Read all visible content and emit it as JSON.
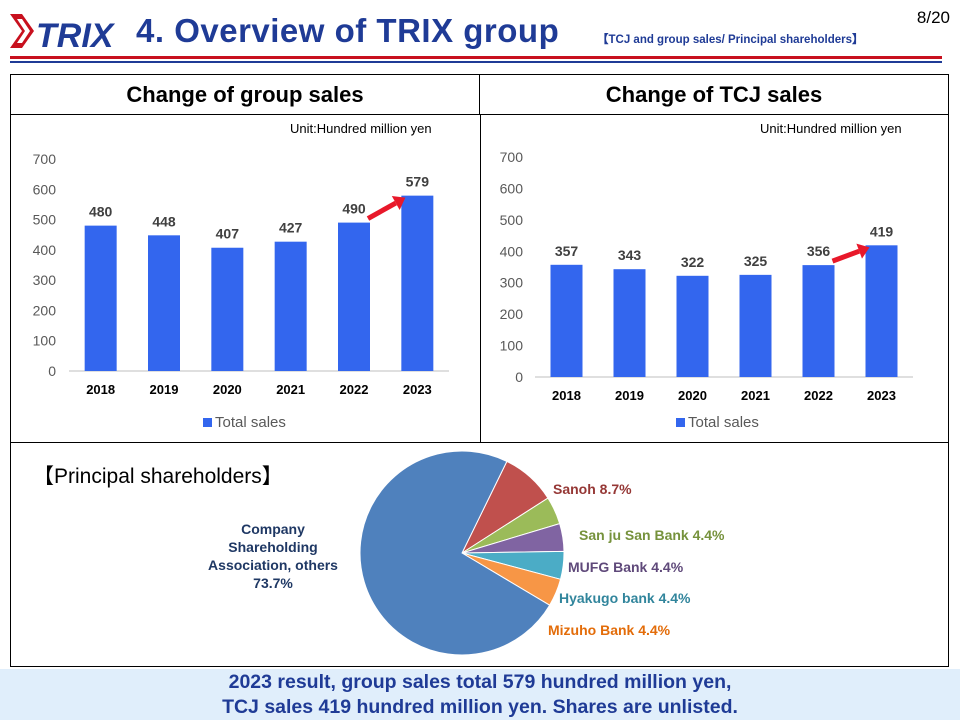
{
  "page": {
    "number": "8/20"
  },
  "logo": {
    "text": "TRIX"
  },
  "header": {
    "title": "4. Overview of TRIX group",
    "subtitle": "【TCJ and group sales/ Principal shareholders】"
  },
  "colors": {
    "bar": "#3366ee",
    "title": "#1f3b96",
    "arrow": "#e8182a",
    "accent_red": "#c8101e"
  },
  "group_chart": {
    "header": "Change of group sales",
    "unit": "Unit:Hundred million yen"
  },
  "tcj_chart": {
    "header": "Change of TCJ sales",
    "unit": "Unit:Hundred million yen"
  },
  "chart_data": [
    {
      "type": "bar",
      "title": "Change of group sales",
      "categories": [
        "2018",
        "2019",
        "2020",
        "2021",
        "2022",
        "2023"
      ],
      "series": [
        {
          "name": "Total sales",
          "values": [
            480,
            448,
            407,
            427,
            490,
            579
          ]
        }
      ],
      "ylim": [
        0,
        700
      ],
      "yticks": [
        0,
        100,
        200,
        300,
        400,
        500,
        600,
        700
      ],
      "legend": "bottom",
      "grid": false
    },
    {
      "type": "bar",
      "title": "Change of TCJ sales",
      "categories": [
        "2018",
        "2019",
        "2020",
        "2021",
        "2022",
        "2023"
      ],
      "series": [
        {
          "name": "Total sales",
          "values": [
            357,
            343,
            322,
            325,
            356,
            419
          ]
        }
      ],
      "ylim": [
        0,
        700
      ],
      "yticks": [
        0,
        100,
        200,
        300,
        400,
        500,
        600,
        700
      ],
      "legend": "bottom",
      "grid": false
    },
    {
      "type": "pie",
      "title": "【Principal shareholders】",
      "slices": [
        {
          "label": "Company Shareholding Association, others 73.7%",
          "value": 73.7,
          "color": "#4f81bd",
          "text_color": "#1f3864"
        },
        {
          "label": "Sanoh 8.7%",
          "value": 8.7,
          "color": "#c0504d",
          "text_color": "#953735"
        },
        {
          "label": "San ju San Bank  4.4%",
          "value": 4.4,
          "color": "#9bbb59",
          "text_color": "#76923c"
        },
        {
          "label": "MUFG Bank  4.4%",
          "value": 4.4,
          "color": "#8064a2",
          "text_color": "#5f497a"
        },
        {
          "label": "Hyakugo bank 4.4%",
          "value": 4.4,
          "color": "#4bacc6",
          "text_color": "#31859c"
        },
        {
          "label": "Mizuho Bank  4.4%",
          "value": 4.4,
          "color": "#f79646",
          "text_color": "#e36c09"
        }
      ]
    }
  ],
  "shareholders": {
    "title": "【Principal shareholders】",
    "company_label_lines": [
      "Company",
      "Shareholding",
      "Association, others",
      "73.7%"
    ]
  },
  "footer": {
    "line1": "2023 result, group sales total 579 hundred million yen,",
    "line2": "TCJ sales 419 hundred million yen. Shares are unlisted."
  }
}
